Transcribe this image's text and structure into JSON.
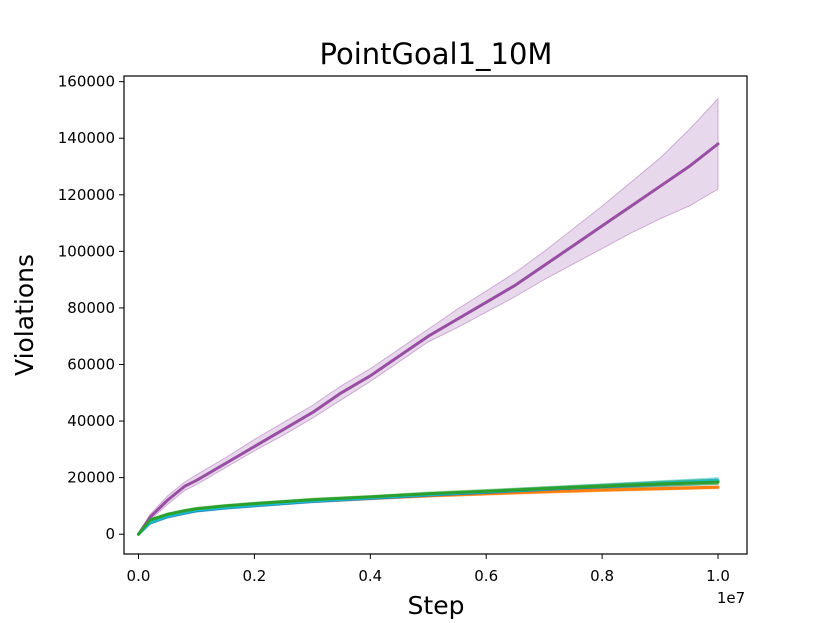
{
  "chart_data": {
    "type": "line",
    "title": "PointGoal1_10M",
    "xlabel": "Step",
    "ylabel": "Violations",
    "x_scale_label": "1e7",
    "xlim": [
      -0.025,
      1.05
    ],
    "ylim": [
      -7000,
      162000
    ],
    "x_ticks": [
      0.0,
      0.2,
      0.4,
      0.6,
      0.8,
      1.0
    ],
    "x_tick_labels": [
      "0.0",
      "0.2",
      "0.4",
      "0.6",
      "0.8",
      "1.0"
    ],
    "y_ticks": [
      0,
      20000,
      40000,
      60000,
      80000,
      100000,
      120000,
      140000,
      160000
    ],
    "y_tick_labels": [
      "0",
      "20000",
      "40000",
      "60000",
      "80000",
      "100000",
      "120000",
      "140000",
      "160000"
    ],
    "grid": false,
    "series": [
      {
        "color": "#984ea3",
        "x": [
          0,
          0.02,
          0.05,
          0.08,
          0.1,
          0.15,
          0.2,
          0.25,
          0.3,
          0.35,
          0.4,
          0.45,
          0.5,
          0.55,
          0.6,
          0.65,
          0.7,
          0.75,
          0.8,
          0.85,
          0.9,
          0.95,
          1.0
        ],
        "y": [
          0,
          6000,
          12000,
          17000,
          19000,
          25000,
          31000,
          37000,
          43000,
          50000,
          56000,
          63000,
          70000,
          76000,
          82000,
          88000,
          95000,
          102000,
          109000,
          116000,
          123000,
          130000,
          138000
        ],
        "y_low": [
          0,
          5000,
          10500,
          15500,
          17500,
          23500,
          29500,
          35000,
          41000,
          47500,
          54000,
          61000,
          68000,
          73000,
          78500,
          84000,
          90000,
          95500,
          101000,
          106500,
          111500,
          116000,
          122000
        ],
        "y_high": [
          0,
          7000,
          13500,
          18500,
          21000,
          27000,
          33500,
          39500,
          45500,
          52500,
          58500,
          65500,
          72500,
          79500,
          86000,
          92500,
          100000,
          108000,
          116000,
          124500,
          133000,
          143000,
          154000
        ]
      },
      {
        "color": "#ff7f0e",
        "x": [
          0,
          0.02,
          0.05,
          0.08,
          0.1,
          0.15,
          0.2,
          0.3,
          0.4,
          0.5,
          0.6,
          0.7,
          0.8,
          0.9,
          1.0
        ],
        "y": [
          0,
          4500,
          6500,
          7800,
          8500,
          9500,
          10300,
          11700,
          12700,
          13600,
          14300,
          15000,
          15600,
          16100,
          16600
        ],
        "y_low": [
          0,
          4000,
          6000,
          7300,
          8000,
          9000,
          9800,
          11200,
          12200,
          13100,
          13800,
          14500,
          15100,
          15600,
          16100
        ],
        "y_high": [
          0,
          5000,
          7000,
          8300,
          9000,
          10000,
          10800,
          12200,
          13200,
          14100,
          14800,
          15500,
          16100,
          16600,
          17100
        ]
      },
      {
        "color": "#1f77b4",
        "x": [
          0,
          0.02,
          0.05,
          0.08,
          0.1,
          0.15,
          0.2,
          0.3,
          0.4,
          0.5,
          0.6,
          0.7,
          0.8,
          0.9,
          1.0
        ],
        "y": [
          0,
          4000,
          6200,
          7500,
          8300,
          9300,
          10100,
          11600,
          12700,
          13800,
          14800,
          15800,
          16800,
          17700,
          18600
        ],
        "y_low": [
          0,
          3500,
          5700,
          7000,
          7800,
          8800,
          9600,
          11100,
          12200,
          13200,
          14200,
          15100,
          16000,
          16800,
          17600
        ],
        "y_high": [
          0,
          4500,
          6700,
          8000,
          8800,
          9800,
          10600,
          12100,
          13200,
          14400,
          15400,
          16500,
          17600,
          18600,
          19600
        ]
      },
      {
        "color": "#17becf",
        "x": [
          0,
          0.02,
          0.05,
          0.08,
          0.1,
          0.15,
          0.2,
          0.3,
          0.4,
          0.5,
          0.6,
          0.7,
          0.8,
          0.9,
          1.0
        ],
        "y": [
          0,
          4200,
          6400,
          7700,
          8500,
          9500,
          10300,
          11800,
          12900,
          14000,
          15000,
          16000,
          17000,
          18000,
          19000
        ],
        "y_low": [
          0,
          3700,
          5900,
          7200,
          8000,
          9000,
          9800,
          11300,
          12400,
          13400,
          14400,
          15300,
          16200,
          17100,
          18000
        ],
        "y_high": [
          0,
          4700,
          6900,
          8200,
          9000,
          10000,
          10800,
          12300,
          13400,
          14600,
          15600,
          16700,
          17800,
          18900,
          20000
        ]
      },
      {
        "color": "#2ca02c",
        "x": [
          0,
          0.02,
          0.05,
          0.08,
          0.1,
          0.15,
          0.2,
          0.3,
          0.4,
          0.5,
          0.6,
          0.7,
          0.8,
          0.9,
          1.0
        ],
        "y": [
          0,
          5000,
          7000,
          8300,
          9000,
          10000,
          10800,
          12200,
          13200,
          14300,
          15200,
          16100,
          17000,
          17800,
          18400
        ],
        "y_low": [
          0,
          4500,
          6500,
          7800,
          8500,
          9500,
          10300,
          11700,
          12700,
          13700,
          14600,
          15500,
          16300,
          17000,
          17600
        ],
        "y_high": [
          0,
          5500,
          7500,
          8800,
          9500,
          10500,
          11300,
          12700,
          13700,
          14900,
          15800,
          16800,
          17700,
          18700,
          19500
        ]
      }
    ]
  }
}
